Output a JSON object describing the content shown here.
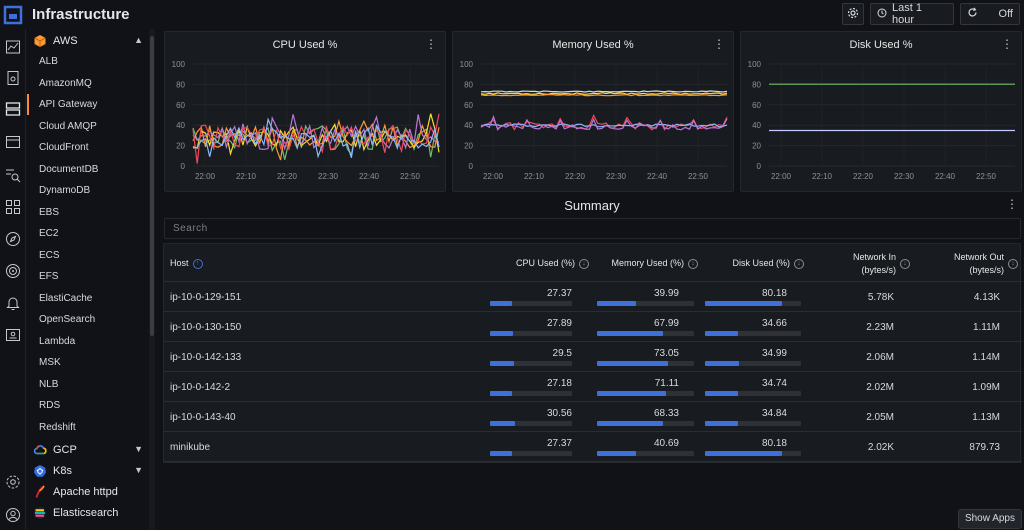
{
  "app": {
    "title": "Infrastructure"
  },
  "toolbar": {
    "time_range": "Last 1 hour",
    "refresh": "Off"
  },
  "sidebar": {
    "aws_label": "AWS",
    "aws_items": [
      "ALB",
      "AmazonMQ",
      "API Gateway",
      "Cloud AMQP",
      "CloudFront",
      "DocumentDB",
      "DynamoDB",
      "EBS",
      "EC2",
      "ECS",
      "EFS",
      "ElastiCache",
      "OpenSearch",
      "Lambda",
      "MSK",
      "NLB",
      "RDS",
      "Redshift"
    ],
    "active_item": "API Gateway",
    "gcp_label": "GCP",
    "k8s_label": "K8s",
    "apache_label": "Apache httpd",
    "elastic_label": "Elasticsearch"
  },
  "panels": [
    {
      "title": "CPU Used %",
      "yticks": [
        "100",
        "80",
        "60",
        "40",
        "20",
        "0"
      ],
      "xticks": [
        "22:00",
        "22:10",
        "22:20",
        "22:30",
        "22:40",
        "22:50"
      ]
    },
    {
      "title": "Memory Used %",
      "yticks": [
        "100",
        "80",
        "60",
        "40",
        "20",
        "0"
      ],
      "xticks": [
        "22:00",
        "22:10",
        "22:20",
        "22:30",
        "22:40",
        "22:50"
      ]
    },
    {
      "title": "Disk Used %",
      "yticks": [
        "100",
        "80",
        "60",
        "40",
        "20",
        "0"
      ],
      "xticks": [
        "22:00",
        "22:10",
        "22:20",
        "22:30",
        "22:40",
        "22:50"
      ]
    }
  ],
  "summary": {
    "title": "Summary",
    "search_placeholder": "Search",
    "columns": {
      "host": "Host",
      "cpu": "CPU Used (%)",
      "mem": "Memory Used (%)",
      "disk": "Disk Used (%)",
      "net_in_1": "Network In",
      "net_in_2": "(bytes/s)",
      "net_out_1": "Network Out",
      "net_out_2": "(bytes/s)"
    },
    "rows": [
      {
        "host": "ip-10-0-129-151",
        "cpu": "27.37",
        "mem": "39.99",
        "disk": "80.18",
        "net_in": "5.78K",
        "net_out": "4.13K"
      },
      {
        "host": "ip-10-0-130-150",
        "cpu": "27.89",
        "mem": "67.99",
        "disk": "34.66",
        "net_in": "2.23M",
        "net_out": "1.11M"
      },
      {
        "host": "ip-10-0-142-133",
        "cpu": "29.5",
        "mem": "73.05",
        "disk": "34.99",
        "net_in": "2.06M",
        "net_out": "1.14M"
      },
      {
        "host": "ip-10-0-142-2",
        "cpu": "27.18",
        "mem": "71.11",
        "disk": "34.74",
        "net_in": "2.02M",
        "net_out": "1.09M"
      },
      {
        "host": "ip-10-0-143-40",
        "cpu": "30.56",
        "mem": "68.33",
        "disk": "34.84",
        "net_in": "2.05M",
        "net_out": "1.13M"
      },
      {
        "host": "minikube",
        "cpu": "27.37",
        "mem": "40.69",
        "disk": "80.18",
        "net_in": "2.02K",
        "net_out": "879.73"
      }
    ]
  },
  "show_apps": "Show Apps",
  "colors": {
    "accent": "#3d71d9",
    "active": "#ff8833",
    "green": "#73bf69",
    "yellow": "#fade2a",
    "orange": "#ff9830",
    "purple": "#b877d9",
    "red": "#f2495c",
    "blue": "#8ab8ff"
  }
}
